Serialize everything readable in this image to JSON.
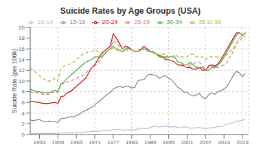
{
  "chart_data": {
    "type": "line",
    "title": "Suicide Rates by Age Groups (USA)",
    "ylabel": "Suicide Rate (per 100k)",
    "x": [
      1950,
      1951,
      1952,
      1953,
      1954,
      1955,
      1956,
      1957,
      1958,
      1959,
      1960,
      1961,
      1962,
      1963,
      1964,
      1965,
      1966,
      1967,
      1968,
      1969,
      1970,
      1971,
      1972,
      1973,
      1974,
      1975,
      1976,
      1977,
      1978,
      1979,
      1980,
      1981,
      1982,
      1983,
      1984,
      1985,
      1986,
      1987,
      1988,
      1989,
      1990,
      1991,
      1992,
      1993,
      1994,
      1995,
      1996,
      1997,
      1998,
      1999,
      2000,
      2001,
      2002,
      2003,
      2004,
      2005,
      2006,
      2007,
      2008,
      2009,
      2010,
      2011,
      2012,
      2013,
      2014,
      2015,
      2016,
      2017,
      2018,
      2019,
      2020
    ],
    "xlim": [
      1950,
      2021
    ],
    "xticks": [
      1953,
      1959,
      1965,
      1971,
      1977,
      1983,
      1989,
      1995,
      2001,
      2007,
      2013,
      2019
    ],
    "ylim": [
      0,
      20
    ],
    "yticks": [
      0,
      2,
      4,
      6,
      8,
      10,
      12,
      14,
      16,
      18,
      20
    ],
    "grid": true,
    "legend": "top",
    "series": [
      {
        "name": "10-14",
        "color": "#c0bcd8",
        "line_style": "solid",
        "values": [
          0.2,
          0.2,
          0.2,
          0.2,
          0.2,
          0.2,
          0.2,
          0.2,
          0.2,
          0.2,
          0.3,
          0.3,
          0.3,
          0.3,
          0.3,
          0.3,
          0.4,
          0.4,
          0.5,
          0.5,
          0.6,
          0.6,
          0.6,
          0.7,
          0.7,
          0.8,
          0.8,
          0.9,
          0.9,
          1.0,
          0.8,
          0.8,
          0.9,
          0.9,
          0.9,
          1.0,
          1.2,
          1.1,
          1.1,
          1.3,
          1.5,
          1.5,
          1.4,
          1.5,
          1.6,
          1.5,
          1.4,
          1.5,
          1.3,
          1.3,
          1.5,
          1.3,
          1.2,
          1.2,
          1.3,
          1.3,
          1.2,
          1.1,
          1.2,
          1.3,
          1.3,
          1.5,
          1.5,
          1.7,
          2.0,
          2.1,
          2.2,
          2.5,
          2.5,
          2.7,
          2.8
        ]
      },
      {
        "name": "15-19",
        "color": "#888888",
        "line_style": "solid",
        "values": [
          2.7,
          2.6,
          2.7,
          2.8,
          2.5,
          2.4,
          2.5,
          2.4,
          2.4,
          2.3,
          3.0,
          3.0,
          3.2,
          3.3,
          3.3,
          3.5,
          3.8,
          4.2,
          4.5,
          4.8,
          5.1,
          5.5,
          6.0,
          6.5,
          7.0,
          7.5,
          7.8,
          8.5,
          8.8,
          9.0,
          8.8,
          9.0,
          9.0,
          8.7,
          8.8,
          10.0,
          10.2,
          10.3,
          11.0,
          11.3,
          11.1,
          11.0,
          10.5,
          10.8,
          11.0,
          10.5,
          10.2,
          9.5,
          8.8,
          8.5,
          7.9,
          7.9,
          7.4,
          7.2,
          7.4,
          7.7,
          6.9,
          6.7,
          7.4,
          7.8,
          7.5,
          8.0,
          8.2,
          8.5,
          9.0,
          10.0,
          11.0,
          11.8,
          11.5,
          10.8,
          11.5
        ]
      },
      {
        "name": "20-24",
        "color": "#cc1111",
        "line_style": "solid",
        "values": [
          6.2,
          6.2,
          6.0,
          6.0,
          5.8,
          5.8,
          5.8,
          5.9,
          6.0,
          5.8,
          7.1,
          7.2,
          7.8,
          8.0,
          8.5,
          9.0,
          9.5,
          10.0,
          10.5,
          11.5,
          12.5,
          13.0,
          14.0,
          15.0,
          15.5,
          16.0,
          16.5,
          18.8,
          18.0,
          17.0,
          16.0,
          16.5,
          16.3,
          15.8,
          15.5,
          15.5,
          16.0,
          16.5,
          16.0,
          15.5,
          15.3,
          15.0,
          14.8,
          14.5,
          14.0,
          14.0,
          13.8,
          13.5,
          13.0,
          13.0,
          12.8,
          12.5,
          12.5,
          12.2,
          12.2,
          12.5,
          12.0,
          12.0,
          12.8,
          13.0,
          12.8,
          13.2,
          14.0,
          15.0,
          16.0,
          17.0,
          18.0,
          19.0,
          19.0,
          18.5,
          19.0
        ]
      },
      {
        "name": "25-29",
        "color": "#e08080",
        "line_style": "dashed",
        "values": [
          8.0,
          7.8,
          7.8,
          7.8,
          7.5,
          7.5,
          7.5,
          7.8,
          8.0,
          7.8,
          9.5,
          9.5,
          9.8,
          10.0,
          10.2,
          10.5,
          10.8,
          11.0,
          11.5,
          12.0,
          12.5,
          12.8,
          13.5,
          14.0,
          15.0,
          15.5,
          16.0,
          17.5,
          17.0,
          16.5,
          16.0,
          16.5,
          16.0,
          15.8,
          15.5,
          15.5,
          16.0,
          16.2,
          15.8,
          15.5,
          15.2,
          15.0,
          14.5,
          14.5,
          14.5,
          14.0,
          13.8,
          13.5,
          13.0,
          12.8,
          12.8,
          12.5,
          13.0,
          13.2,
          13.5,
          13.5,
          12.8,
          12.2,
          12.5,
          12.8,
          12.5,
          12.5,
          12.8,
          13.0,
          13.5,
          14.5,
          15.5,
          17.0,
          17.5,
          18.0,
          18.5
        ]
      },
      {
        "name": "30-34",
        "color": "#44aa44",
        "line_style": "solid",
        "values": [
          8.5,
          8.2,
          8.0,
          8.0,
          7.8,
          7.8,
          7.8,
          8.0,
          8.3,
          8.0,
          9.5,
          9.8,
          10.5,
          11.0,
          11.5,
          12.0,
          12.5,
          13.0,
          13.5,
          13.8,
          14.0,
          14.5,
          14.5,
          14.5,
          15.0,
          15.5,
          16.0,
          16.5,
          16.0,
          15.8,
          15.5,
          16.0,
          16.0,
          15.8,
          15.5,
          15.5,
          15.8,
          16.0,
          15.8,
          15.5,
          15.5,
          15.0,
          14.5,
          14.5,
          14.5,
          14.5,
          14.5,
          14.5,
          13.5,
          13.5,
          13.0,
          13.0,
          13.5,
          13.0,
          12.5,
          12.5,
          12.5,
          12.0,
          12.0,
          12.5,
          12.5,
          13.0,
          13.5,
          14.5,
          15.5,
          16.5,
          17.5,
          18.5,
          19.0,
          18.5,
          19.0
        ]
      },
      {
        "name": "35 to 39",
        "color": "#aabb44",
        "line_style": "dashed",
        "values": [
          12.5,
          12.0,
          11.5,
          11.0,
          10.5,
          10.2,
          10.0,
          10.0,
          10.5,
          10.0,
          12.5,
          12.8,
          13.0,
          13.2,
          13.5,
          14.0,
          14.5,
          15.0,
          15.2,
          15.5,
          15.5,
          15.8,
          15.5,
          15.5,
          15.5,
          15.5,
          16.0,
          16.0,
          15.8,
          15.5,
          15.5,
          15.5,
          16.0,
          15.8,
          15.5,
          15.5,
          16.0,
          15.8,
          15.5,
          15.5,
          15.3,
          15.0,
          15.0,
          15.0,
          15.0,
          14.5,
          14.5,
          15.0,
          14.5,
          14.5,
          14.5,
          14.5,
          15.0,
          15.0,
          14.5,
          14.5,
          14.5,
          14.0,
          14.5,
          14.5,
          14.5,
          14.5,
          14.5,
          14.5,
          15.0,
          15.5,
          16.0,
          17.0,
          18.0,
          18.5,
          19.0
        ]
      }
    ]
  }
}
